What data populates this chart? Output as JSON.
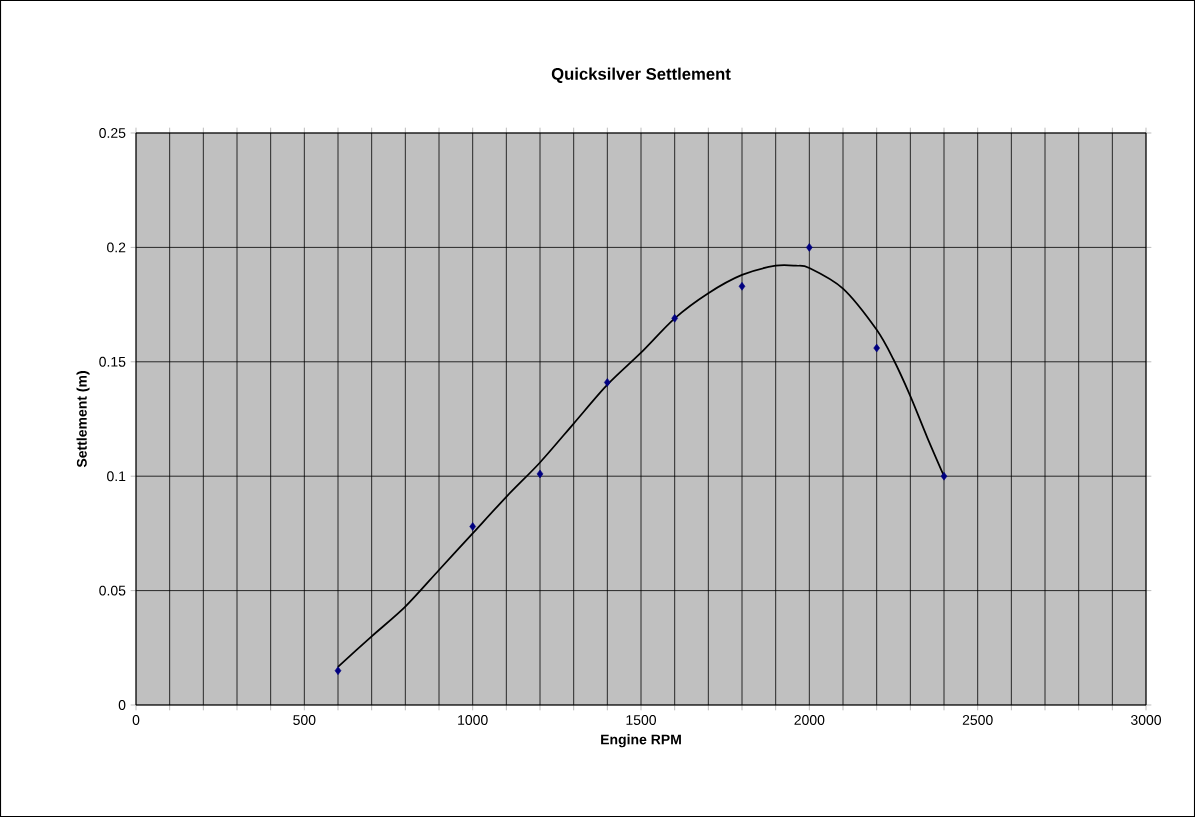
{
  "chart_data": {
    "type": "scatter",
    "title": "Quicksilver Settlement",
    "xlabel": "Engine RPM",
    "ylabel": "Settlement (m)",
    "xlim": [
      0,
      3000
    ],
    "ylim": [
      0,
      0.25
    ],
    "xticks": [
      0,
      {
        "value": 100,
        "label": null
      },
      {
        "value": 200,
        "label": null
      },
      {
        "value": 300,
        "label": null
      },
      {
        "value": 400,
        "label": null
      },
      500,
      {
        "value": 600,
        "label": null
      },
      {
        "value": 700,
        "label": null
      },
      {
        "value": 800,
        "label": null
      },
      {
        "value": 900,
        "label": null
      },
      1000,
      {
        "value": 1100,
        "label": null
      },
      {
        "value": 1200,
        "label": null
      },
      {
        "value": 1300,
        "label": null
      },
      {
        "value": 1400,
        "label": null
      },
      1500,
      {
        "value": 1600,
        "label": null
      },
      {
        "value": 1700,
        "label": null
      },
      {
        "value": 1800,
        "label": null
      },
      {
        "value": 1900,
        "label": null
      },
      2000,
      {
        "value": 2100,
        "label": null
      },
      {
        "value": 2200,
        "label": null
      },
      {
        "value": 2300,
        "label": null
      },
      {
        "value": 2400,
        "label": null
      },
      2500,
      {
        "value": 2600,
        "label": null
      },
      {
        "value": 2700,
        "label": null
      },
      {
        "value": 2800,
        "label": null
      },
      {
        "value": 2900,
        "label": null
      },
      3000
    ],
    "yticks": [
      0,
      0.05,
      0.1,
      0.15,
      0.2,
      0.25
    ],
    "grid": true,
    "series": [
      {
        "marker": "diamond",
        "color": "#000080",
        "x": [
          600,
          1000,
          1200,
          1400,
          1600,
          1800,
          2000,
          2200,
          2400
        ],
        "values": [
          0.015,
          0.078,
          0.101,
          0.141,
          0.169,
          0.183,
          0.2,
          0.156,
          0.1
        ]
      },
      {
        "type": "line",
        "marker": "none",
        "line_style": "solid",
        "color": "#000000",
        "x": [
          600,
          700,
          800,
          900,
          1000,
          1100,
          1200,
          1300,
          1400,
          1500,
          1600,
          1700,
          1800,
          1900,
          1960,
          2000,
          2100,
          2200,
          2250,
          2300,
          2350,
          2400
        ],
        "values": [
          0.0167,
          0.03,
          0.043,
          0.059,
          0.075,
          0.091,
          0.106,
          0.123,
          0.14,
          0.154,
          0.169,
          0.18,
          0.188,
          0.192,
          0.192,
          0.191,
          0.182,
          0.164,
          0.151,
          0.135,
          0.117,
          0.1
        ]
      }
    ]
  }
}
